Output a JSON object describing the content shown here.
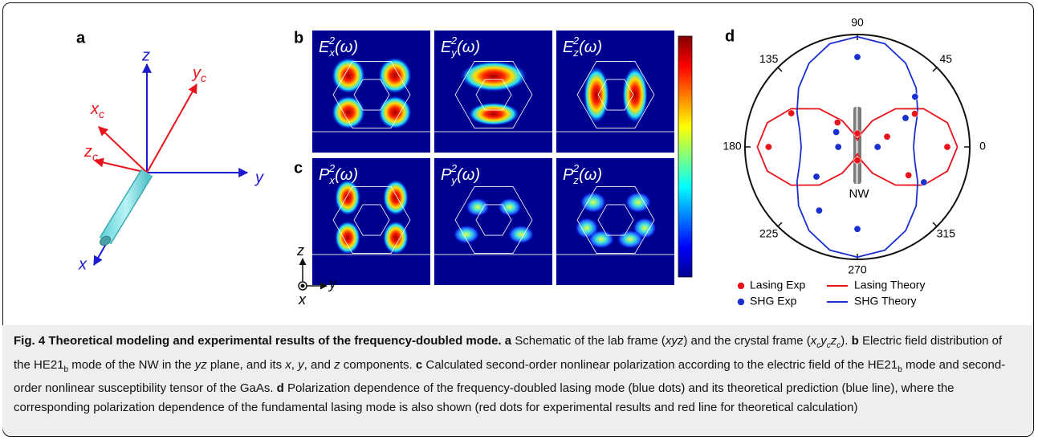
{
  "panel_a": {
    "label": "a",
    "axes": {
      "z": "z",
      "y": "y",
      "x": "x"
    },
    "crystal": [
      {
        "base": "y",
        "sub": "c"
      },
      {
        "base": "x",
        "sub": "c"
      },
      {
        "base": "z",
        "sub": "c"
      }
    ]
  },
  "panel_b": {
    "label": "b",
    "maps": [
      {
        "base": "E",
        "sub": "x",
        "sup": "2",
        "arg": "(ω)"
      },
      {
        "base": "E",
        "sub": "y",
        "sup": "2",
        "arg": "(ω)"
      },
      {
        "base": "E",
        "sub": "z",
        "sup": "2",
        "arg": "(ω)"
      }
    ]
  },
  "panel_c": {
    "label": "c",
    "maps": [
      {
        "base": "P",
        "sub": "x",
        "sup": "2",
        "arg": "(ω)"
      },
      {
        "base": "P",
        "sub": "y",
        "sup": "2",
        "arg": "(ω)"
      },
      {
        "base": "P",
        "sub": "z",
        "sup": "2",
        "arg": "(ω)"
      }
    ],
    "axes": {
      "z": "z",
      "y": "y",
      "x": "x"
    }
  },
  "chart_data": {
    "type": "polar",
    "label": "d",
    "annotation": "NW",
    "thetaticks": [
      0,
      45,
      90,
      135,
      180,
      225,
      270,
      315
    ],
    "rlim": [
      0,
      1
    ],
    "series": [
      {
        "name": "Lasing Exp",
        "color": "#e8141c",
        "mode": "markers",
        "theta": [
          0,
          19,
          30,
          90,
          129,
          153,
          180,
          270,
          331
        ],
        "r": [
          0.8,
          0.28,
          0.59,
          0.12,
          0.28,
          0.66,
          0.79,
          0.12,
          0.52
        ]
      },
      {
        "name": "SHG Exp",
        "color": "#1a2fd0",
        "mode": "markers",
        "theta": [
          0,
          31,
          41,
          90,
          145,
          180,
          216,
          239,
          270,
          332
        ],
        "r": [
          0.18,
          0.5,
          0.68,
          0.8,
          0.23,
          0.17,
          0.45,
          0.66,
          0.73,
          0.67
        ]
      },
      {
        "name": "Lasing Theory",
        "color": "#e8141c",
        "mode": "lines",
        "theta": [
          0,
          15,
          30,
          45,
          60,
          75,
          90,
          105,
          120,
          135,
          150,
          165,
          180,
          195,
          210,
          225,
          240,
          255,
          270,
          285,
          300,
          315,
          330,
          345
        ],
        "r": [
          0.89,
          0.83,
          0.68,
          0.48,
          0.27,
          0.12,
          0.06,
          0.12,
          0.27,
          0.48,
          0.68,
          0.83,
          0.89,
          0.83,
          0.68,
          0.48,
          0.27,
          0.12,
          0.06,
          0.12,
          0.27,
          0.48,
          0.68,
          0.83
        ]
      },
      {
        "name": "SHG Theory",
        "color": "#1a2fd0",
        "mode": "lines",
        "theta": [
          0,
          15,
          30,
          45,
          60,
          75,
          90,
          105,
          120,
          135,
          150,
          165,
          180,
          195,
          210,
          225,
          240,
          255,
          270,
          285,
          300,
          315,
          330,
          345
        ],
        "r": [
          0.5,
          0.53,
          0.62,
          0.74,
          0.86,
          0.95,
          0.98,
          0.95,
          0.86,
          0.74,
          0.62,
          0.53,
          0.5,
          0.53,
          0.62,
          0.74,
          0.86,
          0.95,
          0.98,
          0.95,
          0.86,
          0.74,
          0.62,
          0.53
        ]
      }
    ]
  },
  "caption": [
    "Fig. 4 Theoretical modeling and experimental results of the frequency-doubled mode.",
    "a",
    " Schematic of the lab frame (",
    "xyz",
    ") and the crystal frame (",
    "x",
    "c",
    "y",
    "c",
    "z",
    "c",
    "). ",
    "b",
    " Electric field distribution of the HE21",
    "b",
    " mode of the NW in the ",
    "yz",
    " plane, and its ",
    "x",
    ", ",
    "y",
    ", and ",
    "z",
    " components. ",
    "c",
    " Calculated second-order nonlinear polarization according to the electric field of the HE21",
    "b",
    " mode and second-order nonlinear susceptibility tensor of the GaAs. ",
    "d",
    " Polarization dependence of the frequency-doubled lasing mode (blue dots) and its theoretical prediction (blue line), where the corresponding polarization dependence of the fundamental lasing mode is also shown (red dots for experimental results and red line for theoretical calculation)"
  ]
}
